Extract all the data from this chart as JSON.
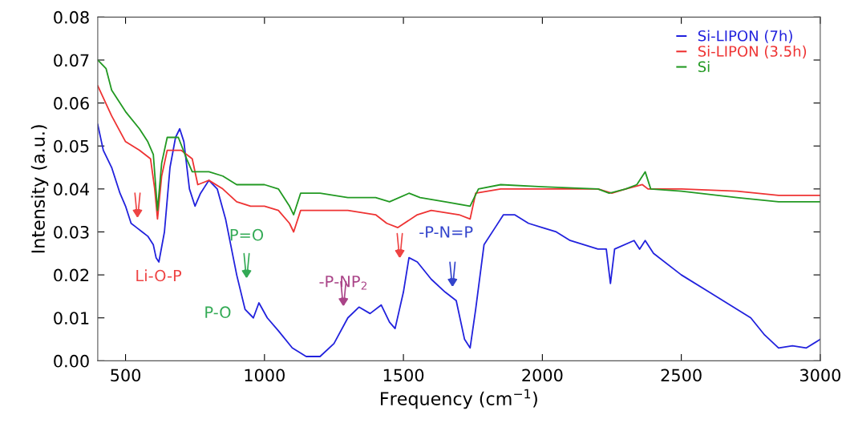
{
  "chart_data": {
    "type": "line",
    "xlabel": "Frequency (cm$^{−1}$)",
    "ylabel": "Intensity (a.u.)",
    "xlim": [
      400,
      3000
    ],
    "ylim": [
      0,
      0.08
    ],
    "xticks": [
      500,
      1000,
      1500,
      2000,
      2500,
      3000
    ],
    "yticks": [
      {
        "value": 0,
        "label": "0.00"
      },
      {
        "value": 0.01,
        "label": "0.01"
      },
      {
        "value": 0.02,
        "label": "0.02"
      },
      {
        "value": 0.03,
        "label": "0.03"
      },
      {
        "value": 0.04,
        "label": "0.04"
      },
      {
        "value": 0.05,
        "label": "0.05"
      },
      {
        "value": 0.06,
        "label": "0.06"
      },
      {
        "value": 0.07,
        "label": "0.07"
      },
      {
        "value": 0.08,
        "label": "0.08"
      }
    ],
    "grid": false,
    "legend": "top right",
    "marker": "none",
    "line_style": "solid",
    "series": [
      {
        "name": "Si-LIPON (7h)",
        "color": "#2222dd",
        "x": [
          400,
          420,
          450,
          480,
          500,
          520,
          540,
          560,
          580,
          600,
          610,
          620,
          640,
          660,
          680,
          695,
          710,
          730,
          750,
          770,
          800,
          830,
          860,
          900,
          930,
          960,
          980,
          1010,
          1050,
          1100,
          1150,
          1200,
          1250,
          1300,
          1340,
          1380,
          1420,
          1450,
          1470,
          1500,
          1520,
          1550,
          1600,
          1650,
          1690,
          1720,
          1740,
          1760,
          1790,
          1830,
          1860,
          1900,
          1950,
          2000,
          2050,
          2100,
          2200,
          2230,
          2245,
          2260,
          2330,
          2350,
          2370,
          2400,
          2500,
          2600,
          2700,
          2750,
          2800,
          2850,
          2900,
          2950,
          3000
        ],
        "values": [
          0.055,
          0.049,
          0.045,
          0.039,
          0.036,
          0.032,
          0.031,
          0.03,
          0.029,
          0.027,
          0.024,
          0.023,
          0.03,
          0.045,
          0.052,
          0.054,
          0.051,
          0.04,
          0.036,
          0.039,
          0.042,
          0.04,
          0.033,
          0.02,
          0.012,
          0.01,
          0.0135,
          0.01,
          0.007,
          0.003,
          0.001,
          0.001,
          0.004,
          0.01,
          0.0125,
          0.011,
          0.013,
          0.009,
          0.0075,
          0.016,
          0.024,
          0.023,
          0.019,
          0.016,
          0.014,
          0.005,
          0.003,
          0.012,
          0.027,
          0.031,
          0.034,
          0.034,
          0.032,
          0.031,
          0.03,
          0.028,
          0.026,
          0.026,
          0.018,
          0.026,
          0.028,
          0.026,
          0.028,
          0.025,
          0.02,
          0.016,
          0.012,
          0.01,
          0.006,
          0.003,
          0.0035,
          0.003,
          0.005
        ]
      },
      {
        "name": "Si-LIPON (3.5h)",
        "color": "#ee3333",
        "x": [
          400,
          450,
          500,
          550,
          590,
          605,
          615,
          630,
          650,
          700,
          740,
          760,
          800,
          850,
          900,
          950,
          1000,
          1050,
          1090,
          1105,
          1130,
          1200,
          1300,
          1400,
          1440,
          1480,
          1550,
          1600,
          1700,
          1740,
          1760,
          1850,
          2000,
          2200,
          2250,
          2300,
          2360,
          2380,
          2500,
          2700,
          2850,
          3000
        ],
        "values": [
          0.064,
          0.057,
          0.051,
          0.049,
          0.047,
          0.04,
          0.033,
          0.043,
          0.049,
          0.049,
          0.047,
          0.041,
          0.042,
          0.04,
          0.037,
          0.036,
          0.036,
          0.035,
          0.032,
          0.03,
          0.035,
          0.035,
          0.035,
          0.034,
          0.032,
          0.031,
          0.034,
          0.035,
          0.034,
          0.033,
          0.039,
          0.04,
          0.04,
          0.04,
          0.039,
          0.04,
          0.041,
          0.04,
          0.04,
          0.0395,
          0.0385,
          0.0385
        ]
      },
      {
        "name": "Si",
        "color": "#229922",
        "x": [
          400,
          430,
          450,
          500,
          550,
          580,
          600,
          615,
          630,
          650,
          690,
          720,
          740,
          800,
          850,
          900,
          1000,
          1050,
          1090,
          1105,
          1130,
          1200,
          1300,
          1400,
          1450,
          1520,
          1560,
          1650,
          1740,
          1770,
          1850,
          2000,
          2200,
          2240,
          2300,
          2340,
          2370,
          2390,
          2500,
          2700,
          2850,
          3000
        ],
        "values": [
          0.07,
          0.068,
          0.063,
          0.058,
          0.054,
          0.051,
          0.048,
          0.035,
          0.046,
          0.052,
          0.052,
          0.047,
          0.044,
          0.044,
          0.043,
          0.041,
          0.041,
          0.04,
          0.036,
          0.034,
          0.039,
          0.039,
          0.038,
          0.038,
          0.037,
          0.039,
          0.038,
          0.037,
          0.036,
          0.04,
          0.041,
          0.0405,
          0.04,
          0.039,
          0.04,
          0.041,
          0.044,
          0.04,
          0.0395,
          0.038,
          0.037,
          0.037
        ]
      }
    ],
    "annotations": [
      "Li-O-P",
      "P=O",
      "P-O",
      "-P-NP$_{2}$",
      "-P-N=P"
    ]
  }
}
